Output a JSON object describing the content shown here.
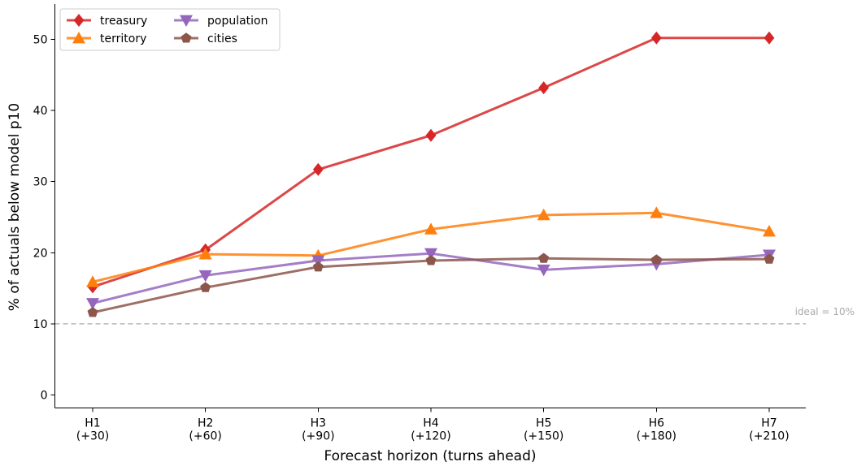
{
  "chart_data": {
    "type": "line",
    "xlabel": "Forecast horizon (turns ahead)",
    "ylabel": "% of actuals below model p10",
    "categories": [
      [
        "H1",
        "(+30)"
      ],
      [
        "H2",
        "(+60)"
      ],
      [
        "H3",
        "(+90)"
      ],
      [
        "H4",
        "(+120)"
      ],
      [
        "H5",
        "(+150)"
      ],
      [
        "H6",
        "(+180)"
      ],
      [
        "H7",
        "(+210)"
      ]
    ],
    "ylim": [
      -2,
      55
    ],
    "yticks": [
      0,
      10,
      20,
      30,
      40,
      50
    ],
    "grid": false,
    "legend_position": "top-left",
    "reference_line": {
      "value": 10,
      "label": "ideal = 10%",
      "color": "#aaaaaa"
    },
    "series": [
      {
        "name": "treasury",
        "color": "#d62728",
        "marker": "diamond",
        "values": [
          15.2,
          20.4,
          31.7,
          36.5,
          43.2,
          50.2,
          50.2
        ]
      },
      {
        "name": "territory",
        "color": "#ff7f0e",
        "marker": "triangle-up",
        "values": [
          15.9,
          19.8,
          19.6,
          23.3,
          25.3,
          25.6,
          23.0
        ]
      },
      {
        "name": "population",
        "color": "#9467bd",
        "marker": "triangle-down",
        "values": [
          12.9,
          16.8,
          18.9,
          19.9,
          17.6,
          18.4,
          19.7
        ]
      },
      {
        "name": "cities",
        "color": "#8c564b",
        "marker": "pentagon",
        "values": [
          11.6,
          15.1,
          18.0,
          18.9,
          19.2,
          19.0,
          19.1
        ]
      }
    ]
  }
}
